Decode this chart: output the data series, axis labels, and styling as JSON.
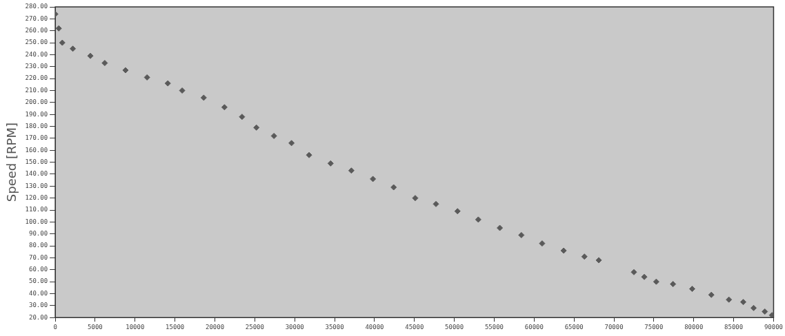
{
  "chart_data": {
    "type": "scatter",
    "ylabel": "Speed [RPM]",
    "marker": "diamond",
    "grid": false,
    "legend": false,
    "xlim": [
      0,
      90000
    ],
    "ylim": [
      20,
      280
    ],
    "xticks": [
      0,
      5000,
      10000,
      15000,
      20000,
      25000,
      30000,
      35000,
      40000,
      45000,
      50000,
      55000,
      60000,
      65000,
      70000,
      75000,
      80000,
      85000,
      90000
    ],
    "yticks": [
      {
        "value": 20,
        "label": "20.00"
      },
      {
        "value": 30,
        "label": "30.00"
      },
      {
        "value": 40,
        "label": "40.00"
      },
      {
        "value": 50,
        "label": "50.00"
      },
      {
        "value": 60,
        "label": "60.00"
      },
      {
        "value": 70,
        "label": "70.00"
      },
      {
        "value": 80,
        "label": "80.00"
      },
      {
        "value": 90,
        "label": "90.00"
      },
      {
        "value": 100,
        "label": "100.00"
      },
      {
        "value": 110,
        "label": "110.00"
      },
      {
        "value": 120,
        "label": "120.00"
      },
      {
        "value": 130,
        "label": "130.00"
      },
      {
        "value": 140,
        "label": "140.00"
      },
      {
        "value": 150,
        "label": "150.00"
      },
      {
        "value": 160,
        "label": "160.00"
      },
      {
        "value": 170,
        "label": "170.00"
      },
      {
        "value": 180,
        "label": "180.00"
      },
      {
        "value": 190,
        "label": "190.00"
      },
      {
        "value": 200,
        "label": "200.00"
      },
      {
        "value": 210,
        "label": "210.00"
      },
      {
        "value": 220,
        "label": "220.00"
      },
      {
        "value": 230,
        "label": "230.00"
      },
      {
        "value": 240,
        "label": "240.00"
      },
      {
        "value": 250,
        "label": "250.00"
      },
      {
        "value": 260,
        "label": "260.00"
      },
      {
        "value": 270,
        "label": "270.00"
      },
      {
        "value": 280,
        "label": "280.00"
      }
    ],
    "series": [
      {
        "color": "#5a5a5a",
        "x": [
          0,
          440,
          880,
          2200,
          4400,
          6200,
          8800,
          11500,
          14100,
          15900,
          18600,
          21200,
          23400,
          25200,
          27400,
          29600,
          31800,
          34500,
          37100,
          39800,
          42400,
          45100,
          47700,
          50400,
          53000,
          55700,
          58400,
          61000,
          63700,
          66300,
          68100,
          72500,
          73800,
          75300,
          77400,
          79800,
          82200,
          84400,
          86200,
          87500,
          88900,
          89800
        ],
        "values": [
          274,
          262,
          250,
          245,
          239,
          233,
          227,
          221,
          216,
          210,
          204,
          196,
          188,
          179,
          172,
          166,
          156,
          149,
          143,
          136,
          129,
          120,
          115,
          109,
          102,
          95,
          89,
          82,
          76,
          71,
          68,
          58,
          54,
          50,
          48,
          44,
          39,
          35,
          33,
          28,
          25,
          22
        ]
      }
    ]
  }
}
